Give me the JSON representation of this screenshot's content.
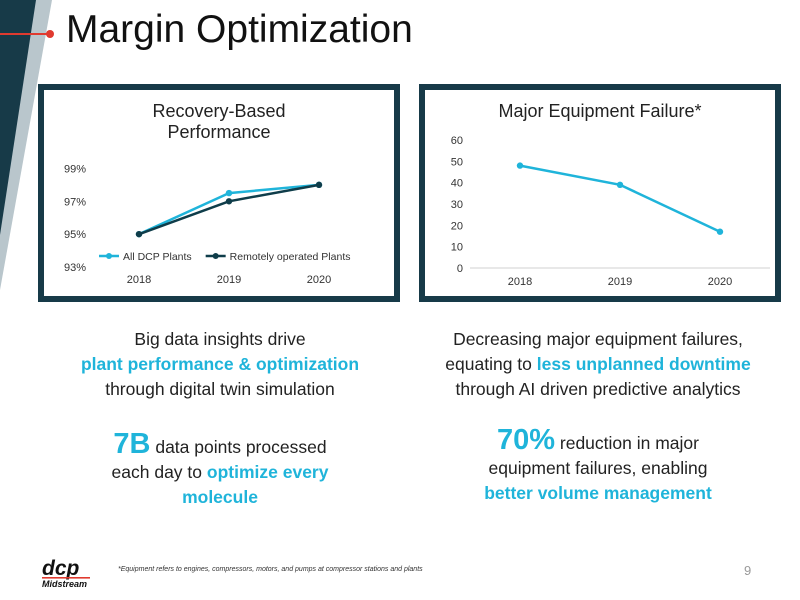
{
  "slide": {
    "title": "Margin Optimization",
    "page_number": "9",
    "footnote": "*Equipment refers to engines, compressors, motors, and pumps at compressor stations and plants",
    "logo": {
      "name": "dcp",
      "sub": "Midstream"
    }
  },
  "colors": {
    "accent": "#1fb4da",
    "dark": "#173a48",
    "red": "#e03a2f"
  },
  "left_text": {
    "line1": "Big data insights drive",
    "line2_highlight": "plant performance & optimization",
    "line3": "through digital twin simulation",
    "stat_big": "7B",
    "stat_rest": " data points processed",
    "stat_line2_pre": "each day to ",
    "stat_line2_hl": "optimize every",
    "stat_line3_hl": "molecule"
  },
  "right_text": {
    "line1": "Decreasing major equipment failures,",
    "line2_pre": "equating to ",
    "line2_highlight": "less unplanned downtime",
    "line3": "through AI driven predictive analytics",
    "stat_big": "70%",
    "stat_rest": " reduction in major",
    "stat_line2": "equipment failures, enabling",
    "stat_line3_hl": "better volume management"
  },
  "chart_data": [
    {
      "type": "line",
      "title_lines": [
        "Recovery-Based",
        "Performance"
      ],
      "x": [
        "2018",
        "2019",
        "2020"
      ],
      "y_ticks": [
        "93%",
        "95%",
        "97%",
        "99%"
      ],
      "ylim": [
        93,
        100
      ],
      "series": [
        {
          "name": "All DCP Plants",
          "values": [
            95.0,
            97.5,
            98.0
          ],
          "color": "#1fb4da"
        },
        {
          "name": "Remotely operated Plants",
          "values": [
            95.0,
            97.0,
            98.0
          ],
          "color": "#0f3d4a"
        }
      ],
      "legend": "bottom-inside",
      "grid": false
    },
    {
      "type": "line",
      "title_lines": [
        "Major Equipment Failure*"
      ],
      "x": [
        "2018",
        "2019",
        "2020"
      ],
      "y_ticks": [
        "0",
        "10",
        "20",
        "30",
        "40",
        "50",
        "60"
      ],
      "ylim": [
        0,
        60
      ],
      "series": [
        {
          "name": "",
          "values": [
            48,
            39,
            17
          ],
          "color": "#1fb4da"
        }
      ],
      "legend": "none",
      "grid": false
    }
  ]
}
